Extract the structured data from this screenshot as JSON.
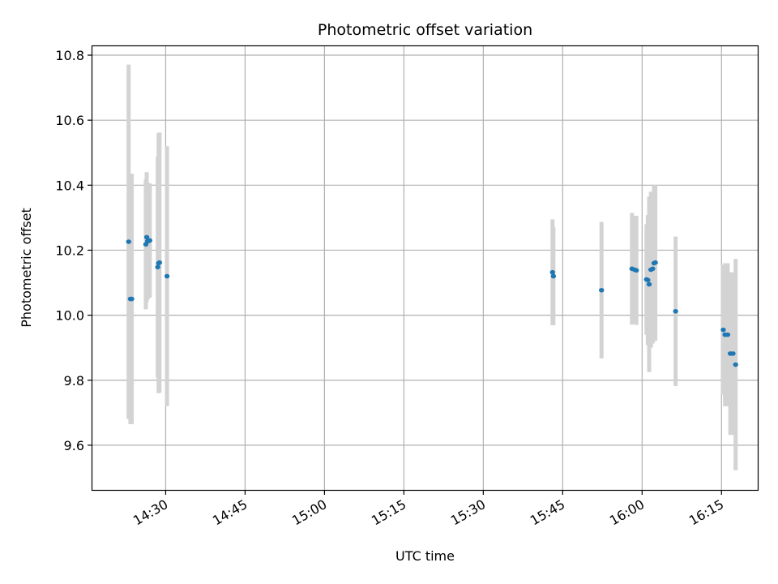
{
  "chart_data": {
    "type": "scatter",
    "title": "Photometric offset variation",
    "xlabel": "UTC time",
    "ylabel": "Photometric offset",
    "x_axis_kind": "time",
    "xlim": [
      "14:16",
      "16:22"
    ],
    "ylim": [
      9.46,
      10.83
    ],
    "x_ticks": [
      "14:30",
      "14:45",
      "15:00",
      "15:15",
      "15:30",
      "15:45",
      "16:00",
      "16:15"
    ],
    "y_ticks": [
      9.6,
      9.8,
      10.0,
      10.2,
      10.4,
      10.6,
      10.8
    ],
    "y_tick_labels": [
      "9.6",
      "9.8",
      "10.0",
      "10.2",
      "10.4",
      "10.6",
      "10.8"
    ],
    "grid": true,
    "marker_color": "#1f77b4",
    "errorbar_color": "#d3d3d3",
    "points": [
      {
        "time": "14:23:00",
        "y": 10.226,
        "err": 0.545
      },
      {
        "time": "14:23:20",
        "y": 10.05,
        "err": 0.385
      },
      {
        "time": "14:23:35",
        "y": 10.05,
        "err": 0.385
      },
      {
        "time": "14:26:15",
        "y": 10.218,
        "err": 0.2
      },
      {
        "time": "14:26:25",
        "y": 10.24,
        "err": 0.2
      },
      {
        "time": "14:26:35",
        "y": 10.228,
        "err": 0.18
      },
      {
        "time": "14:26:45",
        "y": 10.228,
        "err": 0.175
      },
      {
        "time": "14:27:00",
        "y": 10.23,
        "err": 0.175
      },
      {
        "time": "14:28:30",
        "y": 10.148,
        "err": 0.34
      },
      {
        "time": "14:28:40",
        "y": 10.16,
        "err": 0.4
      },
      {
        "time": "14:28:50",
        "y": 10.162,
        "err": 0.4
      },
      {
        "time": "14:30:15",
        "y": 10.12,
        "err": 0.4
      },
      {
        "time": "15:43:05",
        "y": 10.132,
        "err": 0.163
      },
      {
        "time": "15:43:15",
        "y": 10.12,
        "err": 0.15
      },
      {
        "time": "15:52:20",
        "y": 10.077,
        "err": 0.21
      },
      {
        "time": "15:58:05",
        "y": 10.143,
        "err": 0.172
      },
      {
        "time": "15:58:35",
        "y": 10.14,
        "err": 0.165
      },
      {
        "time": "15:58:55",
        "y": 10.138,
        "err": 0.168
      },
      {
        "time": "16:00:50",
        "y": 10.11,
        "err": 0.17
      },
      {
        "time": "16:01:05",
        "y": 10.108,
        "err": 0.2
      },
      {
        "time": "16:01:20",
        "y": 10.095,
        "err": 0.27
      },
      {
        "time": "16:01:40",
        "y": 10.14,
        "err": 0.24
      },
      {
        "time": "16:02:00",
        "y": 10.143,
        "err": 0.23
      },
      {
        "time": "16:02:15",
        "y": 10.16,
        "err": 0.24
      },
      {
        "time": "16:02:30",
        "y": 10.162,
        "err": 0.24
      },
      {
        "time": "16:06:20",
        "y": 10.012,
        "err": 0.23
      },
      {
        "time": "16:15:20",
        "y": 9.955,
        "err": 0.2
      },
      {
        "time": "16:15:40",
        "y": 9.94,
        "err": 0.22
      },
      {
        "time": "16:16:10",
        "y": 9.94,
        "err": 0.22
      },
      {
        "time": "16:16:40",
        "y": 9.882,
        "err": 0.25
      },
      {
        "time": "16:17:10",
        "y": 9.882,
        "err": 0.25
      },
      {
        "time": "16:17:40",
        "y": 9.848,
        "err": 0.325
      }
    ]
  }
}
